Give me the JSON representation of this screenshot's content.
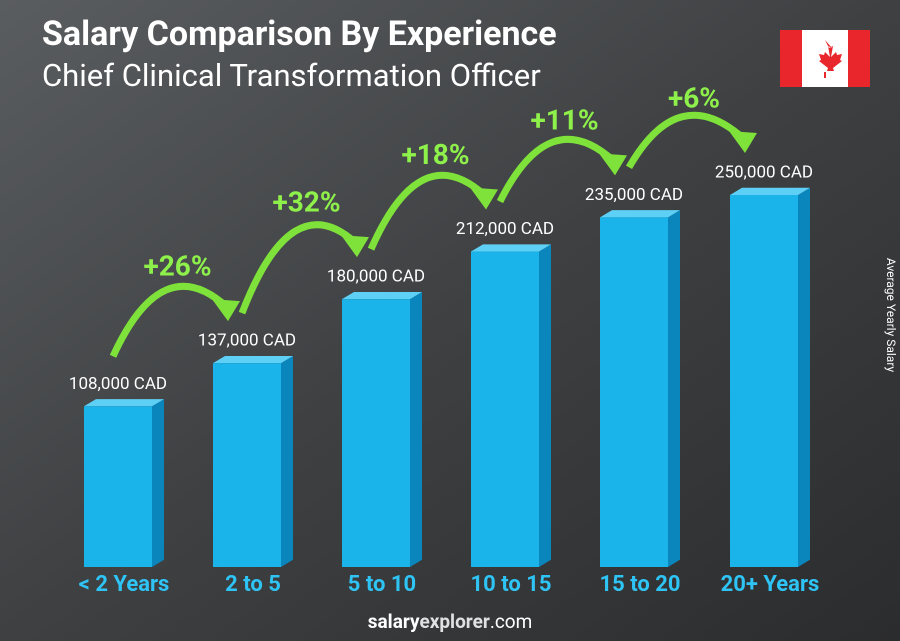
{
  "chart_data": {
    "type": "bar",
    "title": "Salary Comparison By Experience",
    "subtitle": "Chief Clinical Transformation Officer",
    "y_axis_label": "Average Yearly Salary",
    "categories": [
      "< 2 Years",
      "2 to 5",
      "5 to 10",
      "10 to 15",
      "15 to 20",
      "20+ Years"
    ],
    "values": [
      108000,
      137000,
      180000,
      212000,
      235000,
      250000
    ],
    "value_labels": [
      "108,000 CAD",
      "137,000 CAD",
      "180,000 CAD",
      "212,000 CAD",
      "235,000 CAD",
      "250,000 CAD"
    ],
    "changes": [
      26,
      32,
      18,
      11,
      6
    ],
    "change_labels": [
      "+26%",
      "+32%",
      "+18%",
      "+11%",
      "+6%"
    ],
    "color": "#1ab3ea",
    "ylim": [
      0,
      250000
    ],
    "footer": {
      "bold": "salary",
      "medium": "explorer",
      "regular": ".com"
    }
  }
}
